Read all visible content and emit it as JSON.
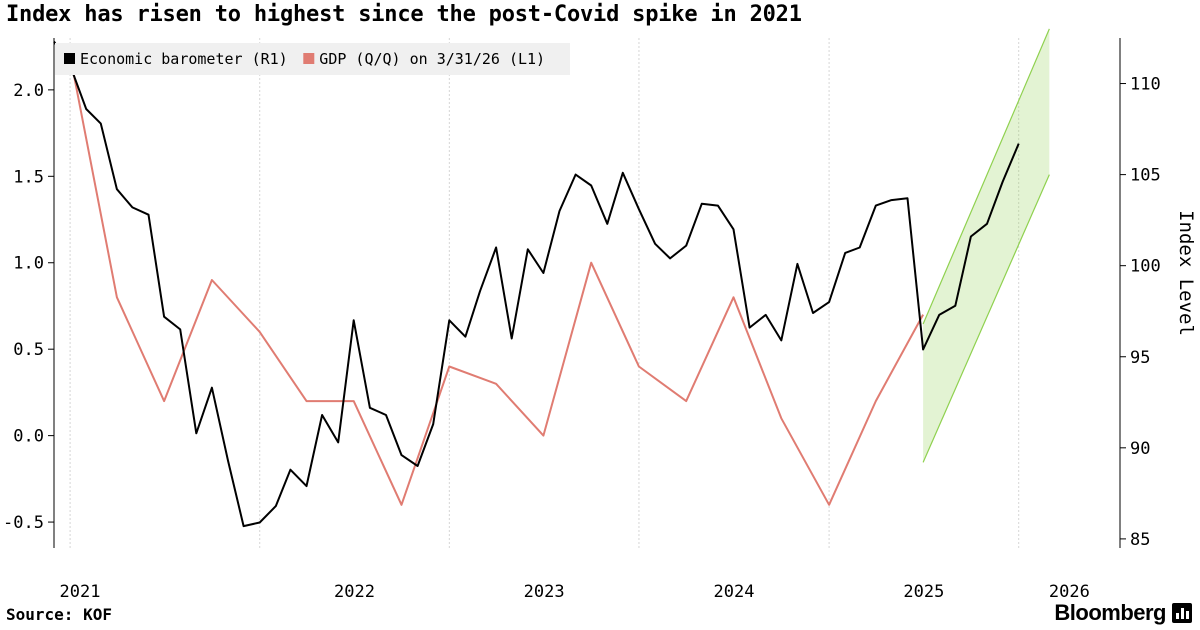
{
  "title": "Index has risen to highest since the post-Covid spike in 2021",
  "source": "Source: KOF",
  "brand": "Bloomberg",
  "chart_data": {
    "type": "line",
    "title": "Index has risen to highest since the post-Covid spike in 2021",
    "legend_position": "top-left",
    "grid": {
      "x": true,
      "y": false
    },
    "x_tick_labels": [
      "2021",
      "2022",
      "2023",
      "2024",
      "2025",
      "2026"
    ],
    "left_axis": {
      "ticks": [
        "-0.5",
        "0.0",
        "0.5",
        "1.0",
        "1.5",
        "2.0"
      ],
      "ylim": [
        -0.65,
        2.3
      ]
    },
    "right_axis": {
      "label": "Index Level",
      "ticks": [
        "85",
        "90",
        "95",
        "100",
        "105",
        "110"
      ],
      "ylim": [
        84.5,
        112.5
      ]
    },
    "x_range": [
      "2020-12-01",
      "2026-07-15"
    ],
    "series": [
      {
        "name": "Economic barometer (R1)",
        "axis": "right",
        "color": "#000000",
        "points": [
          [
            "2020-12-01",
            112.3
          ],
          [
            "2021-01-01",
            111.0
          ],
          [
            "2021-02-01",
            108.6
          ],
          [
            "2021-03-01",
            107.8
          ],
          [
            "2021-04-01",
            104.2
          ],
          [
            "2021-05-01",
            103.2
          ],
          [
            "2021-06-01",
            102.8
          ],
          [
            "2021-07-01",
            97.2
          ],
          [
            "2021-08-01",
            96.5
          ],
          [
            "2021-09-01",
            90.8
          ],
          [
            "2021-10-01",
            93.3
          ],
          [
            "2021-11-01",
            89.3
          ],
          [
            "2021-12-01",
            85.7
          ],
          [
            "2022-01-01",
            85.9
          ],
          [
            "2022-02-01",
            86.8
          ],
          [
            "2022-03-01",
            88.8
          ],
          [
            "2022-04-01",
            87.9
          ],
          [
            "2022-05-01",
            91.8
          ],
          [
            "2022-06-01",
            90.3
          ],
          [
            "2022-07-01",
            97.0
          ],
          [
            "2022-08-01",
            92.2
          ],
          [
            "2022-09-01",
            91.8
          ],
          [
            "2022-10-01",
            89.6
          ],
          [
            "2022-11-01",
            89.0
          ],
          [
            "2022-12-01",
            91.3
          ],
          [
            "2023-01-01",
            97.0
          ],
          [
            "2023-02-01",
            96.1
          ],
          [
            "2023-03-01",
            98.6
          ],
          [
            "2023-04-01",
            101.0
          ],
          [
            "2023-05-01",
            96.0
          ],
          [
            "2023-06-01",
            100.9
          ],
          [
            "2023-07-01",
            99.6
          ],
          [
            "2023-08-01",
            103.0
          ],
          [
            "2023-09-01",
            105.0
          ],
          [
            "2023-10-01",
            104.4
          ],
          [
            "2023-11-01",
            102.3
          ],
          [
            "2023-12-01",
            105.1
          ],
          [
            "2024-01-01",
            103.1
          ],
          [
            "2024-02-01",
            101.2
          ],
          [
            "2024-03-01",
            100.4
          ],
          [
            "2024-04-01",
            101.1
          ],
          [
            "2024-05-01",
            103.4
          ],
          [
            "2024-06-01",
            103.3
          ],
          [
            "2024-07-01",
            102.0
          ],
          [
            "2024-08-01",
            96.6
          ],
          [
            "2024-09-01",
            97.3
          ],
          [
            "2024-10-01",
            95.9
          ],
          [
            "2024-11-01",
            100.1
          ],
          [
            "2024-12-01",
            97.4
          ],
          [
            "2025-01-01",
            98.0
          ],
          [
            "2025-02-01",
            100.7
          ],
          [
            "2025-03-01",
            101.0
          ],
          [
            "2025-04-01",
            103.3
          ],
          [
            "2025-05-01",
            103.6
          ],
          [
            "2025-06-01",
            103.7
          ],
          [
            "2025-07-01",
            95.4
          ],
          [
            "2025-08-01",
            97.3
          ],
          [
            "2025-09-01",
            97.8
          ],
          [
            "2025-10-01",
            101.6
          ],
          [
            "2025-11-01",
            102.3
          ],
          [
            "2025-12-01",
            104.6
          ],
          [
            "2026-01-01",
            106.7
          ]
        ]
      },
      {
        "name": "GDP (Q/Q) on 3/31/26 (L1)",
        "axis": "left",
        "color": "#e07c72",
        "points": [
          [
            "2021-01-01",
            2.2
          ],
          [
            "2021-04-01",
            0.8
          ],
          [
            "2021-07-01",
            0.2
          ],
          [
            "2021-10-01",
            0.9
          ],
          [
            "2022-01-01",
            0.6
          ],
          [
            "2022-04-01",
            0.2
          ],
          [
            "2022-07-01",
            0.2
          ],
          [
            "2022-10-01",
            -0.4
          ],
          [
            "2023-01-01",
            0.4
          ],
          [
            "2023-04-01",
            0.3
          ],
          [
            "2023-07-01",
            0.0
          ],
          [
            "2023-10-01",
            1.0
          ],
          [
            "2024-01-01",
            0.4
          ],
          [
            "2024-04-01",
            0.2
          ],
          [
            "2024-07-01",
            0.8
          ],
          [
            "2024-10-01",
            0.1
          ],
          [
            "2025-01-01",
            -0.4
          ],
          [
            "2025-04-01",
            0.2
          ],
          [
            "2025-07-01",
            0.7
          ]
        ]
      }
    ],
    "trend_band": {
      "axis": "right",
      "color": "#8fd14f",
      "start": "2025-07-01",
      "end": "2026-03-01",
      "lower": [
        89.2,
        105.0
      ],
      "upper": [
        96.8,
        113.0
      ]
    }
  }
}
